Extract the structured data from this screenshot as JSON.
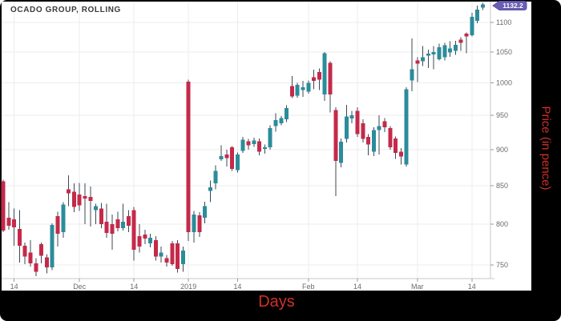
{
  "title": "OCADO GROUP, ROLLING",
  "axis_labels": {
    "x": "Days",
    "y": "Price (in pence)"
  },
  "last_price_badge": "1132.2",
  "colors": {
    "up": "#2b8c9b",
    "down": "#c5294a",
    "wick": "#3c4956",
    "badge_fill": "#6a5eb4",
    "badge_edge": "#5b50a0",
    "badge_text": "#ffffff",
    "grid": "#ececec",
    "axis_line": "#c9c9c9",
    "tick_mark": "#999999",
    "tick_label": "#6b6b6b",
    "frame": "#000000",
    "axis_title_red": "#d03028",
    "panel_bg": "#ffffff"
  },
  "chart_data": {
    "type": "candlestick",
    "title": "OCADO GROUP, ROLLING",
    "xlabel": "Days",
    "ylabel": "Price (in pence)",
    "y_scale": "log",
    "ylim": [
      734,
      1137
    ],
    "y_ticks": [
      750,
      800,
      850,
      900,
      950,
      1000,
      1050,
      1100
    ],
    "x_ticks": [
      {
        "i": 2,
        "label": "14"
      },
      {
        "i": 14,
        "label": "Dec"
      },
      {
        "i": 24,
        "label": "14"
      },
      {
        "i": 34,
        "label": "2019"
      },
      {
        "i": 43,
        "label": "14"
      },
      {
        "i": 56,
        "label": "Feb"
      },
      {
        "i": 65,
        "label": "14"
      },
      {
        "i": 76,
        "label": "Mar"
      },
      {
        "i": 86,
        "label": "14"
      }
    ],
    "grid": true,
    "legend": "none",
    "last_price": 1132.2,
    "ohlc": [
      [
        856,
        858,
        790,
        792
      ],
      [
        808,
        828,
        793,
        798
      ],
      [
        806,
        820,
        773,
        796
      ],
      [
        794,
        818,
        753,
        773
      ],
      [
        773,
        777,
        751,
        760
      ],
      [
        765,
        780,
        748,
        752
      ],
      [
        752,
        758,
        737,
        742
      ],
      [
        775,
        777,
        752,
        761
      ],
      [
        759,
        763,
        740,
        747
      ],
      [
        747,
        801,
        744,
        799
      ],
      [
        810,
        816,
        772,
        788
      ],
      [
        790,
        828,
        783,
        825
      ],
      [
        845,
        864,
        823,
        840
      ],
      [
        842,
        853,
        815,
        822
      ],
      [
        838,
        854,
        817,
        824
      ],
      [
        836,
        853,
        800,
        833
      ],
      [
        835,
        849,
        797,
        830
      ],
      [
        818,
        826,
        800,
        823
      ],
      [
        820,
        827,
        795,
        800
      ],
      [
        803,
        826,
        783,
        789
      ],
      [
        800,
        812,
        768,
        788
      ],
      [
        806,
        816,
        791,
        795
      ],
      [
        795,
        826,
        792,
        803
      ],
      [
        810,
        818,
        790,
        798
      ],
      [
        818,
        822,
        755,
        768
      ],
      [
        785,
        800,
        765,
        772
      ],
      [
        787,
        793,
        775,
        782
      ],
      [
        776,
        788,
        771,
        783
      ],
      [
        780,
        785,
        755,
        760
      ],
      [
        760,
        772,
        753,
        765
      ],
      [
        758,
        762,
        748,
        753
      ],
      [
        776,
        779,
        749,
        751
      ],
      [
        776,
        780,
        741,
        745
      ],
      [
        751,
        772,
        742,
        767
      ],
      [
        1002,
        1005,
        779,
        790
      ],
      [
        790,
        817,
        777,
        812
      ],
      [
        811,
        815,
        784,
        790
      ],
      [
        808,
        829,
        801,
        823
      ],
      [
        843,
        857,
        828,
        848
      ],
      [
        853,
        878,
        845,
        870
      ],
      [
        886,
        906,
        884,
        891
      ],
      [
        893,
        900,
        876,
        888
      ],
      [
        903,
        905,
        870,
        873
      ],
      [
        871,
        896,
        868,
        893
      ],
      [
        898,
        918,
        895,
        914
      ],
      [
        912,
        915,
        900,
        906
      ],
      [
        908,
        917,
        904,
        913
      ],
      [
        912,
        916,
        892,
        897
      ],
      [
        901,
        907,
        894,
        903
      ],
      [
        903,
        935,
        900,
        931
      ],
      [
        934,
        953,
        926,
        943
      ],
      [
        938,
        949,
        935,
        946
      ],
      [
        944,
        965,
        940,
        961
      ],
      [
        995,
        1011,
        976,
        979
      ],
      [
        980,
        1000,
        977,
        997
      ],
      [
        989,
        1003,
        978,
        993
      ],
      [
        986,
        1004,
        983,
        1000
      ],
      [
        1009,
        1021,
        990,
        1003
      ],
      [
        1017,
        1023,
        989,
        1005
      ],
      [
        982,
        1050,
        972,
        1048
      ],
      [
        1032,
        1035,
        954,
        982
      ],
      [
        958,
        962,
        836,
        884
      ],
      [
        881,
        916,
        875,
        911
      ],
      [
        915,
        966,
        910,
        948
      ],
      [
        945,
        957,
        938,
        950
      ],
      [
        957,
        962,
        918,
        922
      ],
      [
        938,
        944,
        910,
        915
      ],
      [
        918,
        922,
        892,
        907
      ],
      [
        897,
        932,
        891,
        928
      ],
      [
        928,
        950,
        893,
        934
      ],
      [
        941,
        946,
        925,
        932
      ],
      [
        931,
        934,
        900,
        903
      ],
      [
        916,
        919,
        887,
        895
      ],
      [
        897,
        902,
        879,
        890
      ],
      [
        879,
        993,
        876,
        990
      ],
      [
        1004,
        1073,
        987,
        1022
      ],
      [
        1036,
        1041,
        1001,
        1031
      ],
      [
        1035,
        1060,
        1027,
        1041
      ],
      [
        1044,
        1054,
        1024,
        1047
      ],
      [
        1046,
        1060,
        1022,
        1050
      ],
      [
        1038,
        1064,
        1036,
        1058
      ],
      [
        1041,
        1065,
        1036,
        1061
      ],
      [
        1049,
        1068,
        1042,
        1056
      ],
      [
        1052,
        1069,
        1045,
        1062
      ],
      [
        1071,
        1075,
        1052,
        1065
      ],
      [
        1081,
        1083,
        1048,
        1076
      ],
      [
        1078,
        1117,
        1076,
        1110
      ],
      [
        1103,
        1130,
        1099,
        1123
      ],
      [
        1126,
        1135,
        1122,
        1132.2
      ]
    ]
  }
}
